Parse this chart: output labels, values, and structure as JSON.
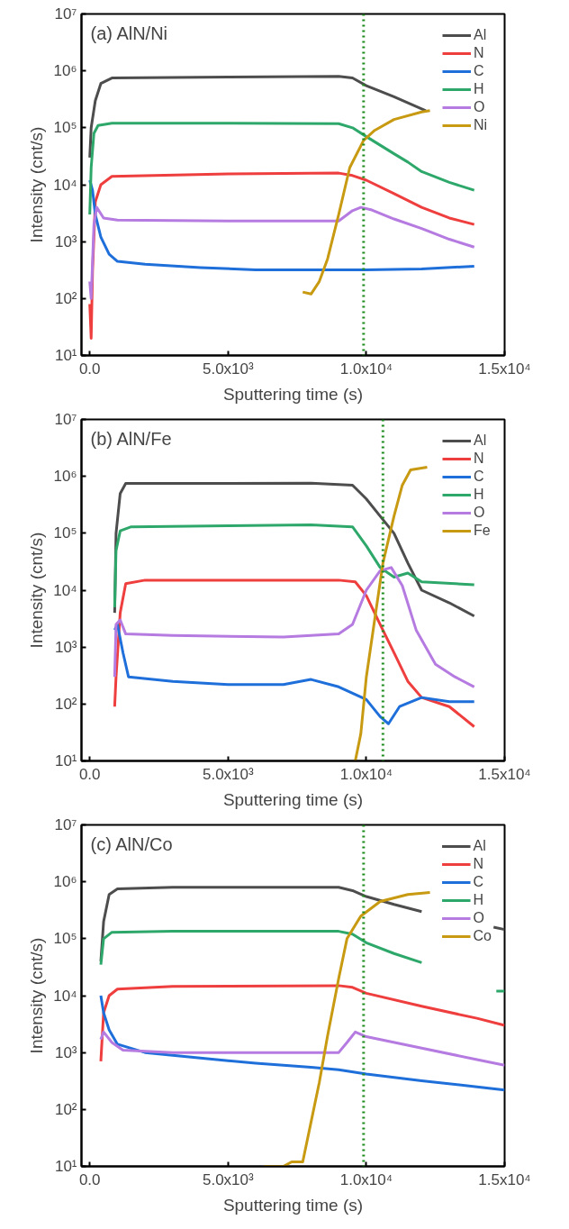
{
  "chart_data": [
    {
      "type": "line",
      "title": "(a) AlN/Ni",
      "xlabel": "Sputtering time (s)",
      "ylabel": "Intensity (cnt/s)",
      "log": "y",
      "grid": false,
      "legend": "top right",
      "marker": "none",
      "line_style": "solid",
      "xlim": [
        -300,
        15000
      ],
      "xticks": [
        {
          "value": 0,
          "label": "0.0"
        },
        {
          "value": 5000,
          "label": "5.0x10³"
        },
        {
          "value": 10000,
          "label": "1.0x10⁴"
        },
        {
          "value": 15000,
          "label": "1.5x10⁴"
        }
      ],
      "ylim": [
        10,
        10000000
      ],
      "yticks": [
        {
          "value": 10,
          "label": "10¹"
        },
        {
          "value": 100,
          "label": "10²"
        },
        {
          "value": 1000,
          "label": "10³"
        },
        {
          "value": 10000,
          "label": "10⁴"
        },
        {
          "value": 100000,
          "label": "10⁵"
        },
        {
          "value": 1000000,
          "label": "10⁶"
        },
        {
          "value": 10000000,
          "label": "10⁷"
        }
      ],
      "ref_lines": [
        {
          "axis": "x",
          "value": 9900,
          "color": "#1e8c1e",
          "line_style": "dotted"
        }
      ],
      "series": [
        {
          "name": "Al",
          "color": "#4d4d4d",
          "x": [
            0,
            50,
            200,
            400,
            800,
            5000,
            9000,
            9500,
            10000,
            11000,
            12150
          ],
          "values": [
            30000,
            100000,
            300000,
            600000,
            750000,
            780000,
            800000,
            750000,
            550000,
            350000,
            200000
          ]
        },
        {
          "name": "N",
          "color": "#ef3e3e",
          "x": [
            0,
            50,
            100,
            200,
            400,
            800,
            5000,
            9000,
            9500,
            10000,
            11000,
            12000,
            13000,
            13900
          ],
          "values": [
            80,
            20,
            300,
            5000,
            10000,
            14000,
            15500,
            16000,
            14500,
            12000,
            7000,
            4000,
            2600,
            2000
          ]
        },
        {
          "name": "C",
          "color": "#1f6fdb",
          "x": [
            0,
            100,
            200,
            400,
            700,
            1000,
            2000,
            4000,
            6000,
            8000,
            10000,
            12000,
            13900
          ],
          "values": [
            12000,
            8000,
            3000,
            1200,
            600,
            450,
            400,
            350,
            320,
            320,
            320,
            330,
            370
          ]
        },
        {
          "name": "H",
          "color": "#2ea86a",
          "x": [
            0,
            50,
            150,
            300,
            800,
            5000,
            9000,
            9500,
            10000,
            11000,
            11500,
            12000,
            13000,
            13900
          ],
          "values": [
            3000,
            20000,
            80000,
            110000,
            120000,
            120000,
            118000,
            100000,
            70000,
            35000,
            25000,
            17000,
            11000,
            8000
          ]
        },
        {
          "name": "O",
          "color": "#b57be0",
          "x": [
            0,
            50,
            150,
            250,
            500,
            1000,
            5000,
            9000,
            9500,
            9800,
            10200,
            11000,
            12000,
            13000,
            13900
          ],
          "values": [
            200,
            100,
            2000,
            4000,
            2600,
            2400,
            2300,
            2300,
            3500,
            4000,
            3600,
            2500,
            1700,
            1100,
            800
          ]
        },
        {
          "name": "Ni",
          "color": "#c89a12",
          "x": [
            7700,
            8000,
            8300,
            8600,
            9000,
            9400,
            9900,
            10300,
            11000,
            12000,
            12300
          ],
          "values": [
            130,
            120,
            200,
            500,
            3000,
            20000,
            60000,
            90000,
            140000,
            190000,
            200000
          ]
        }
      ]
    },
    {
      "type": "line",
      "title": "(b) AlN/Fe",
      "xlabel": "Sputtering time (s)",
      "ylabel": "Intensity (cnt/s)",
      "log": "y",
      "grid": false,
      "legend": "top right",
      "marker": "none",
      "line_style": "solid",
      "xlim": [
        -300,
        15000
      ],
      "xticks": [
        {
          "value": 0,
          "label": "0.0"
        },
        {
          "value": 5000,
          "label": "5.0x10³"
        },
        {
          "value": 10000,
          "label": "1.0x10⁴"
        },
        {
          "value": 15000,
          "label": "1.5x10⁴"
        }
      ],
      "ylim": [
        10,
        10000000
      ],
      "yticks": [
        {
          "value": 10,
          "label": "10¹"
        },
        {
          "value": 100,
          "label": "10²"
        },
        {
          "value": 1000,
          "label": "10³"
        },
        {
          "value": 10000,
          "label": "10⁴"
        },
        {
          "value": 100000,
          "label": "10⁵"
        },
        {
          "value": 1000000,
          "label": "10⁶"
        },
        {
          "value": 10000000,
          "label": "10⁷"
        }
      ],
      "ref_lines": [
        {
          "axis": "x",
          "value": 10600,
          "color": "#1e8c1e",
          "line_style": "dotted"
        }
      ],
      "series": [
        {
          "name": "Al",
          "color": "#4d4d4d",
          "x": [
            900,
            950,
            1100,
            1300,
            5000,
            8000,
            9500,
            10000,
            10500,
            11000,
            11500,
            12000,
            13000,
            13900
          ],
          "values": [
            4000,
            100000,
            500000,
            750000,
            750000,
            760000,
            700000,
            400000,
            200000,
            100000,
            30000,
            10000,
            6000,
            3500
          ]
        },
        {
          "name": "N",
          "color": "#ef3e3e",
          "x": [
            900,
            950,
            1100,
            1300,
            2000,
            9000,
            9600,
            10000,
            10500,
            11000,
            11500,
            12000,
            13000,
            13900
          ],
          "values": [
            90,
            300,
            4000,
            13000,
            15000,
            15000,
            14000,
            8000,
            2500,
            800,
            250,
            130,
            90,
            40
          ]
        },
        {
          "name": "C",
          "color": "#1f6fdb",
          "x": [
            900,
            1000,
            1200,
            1400,
            3000,
            5000,
            7000,
            8000,
            9000,
            10000,
            10500,
            10800,
            11200,
            12000,
            13000,
            13900
          ],
          "values": [
            2000,
            2500,
            800,
            300,
            250,
            220,
            220,
            270,
            200,
            120,
            60,
            45,
            90,
            130,
            110,
            110
          ]
        },
        {
          "name": "H",
          "color": "#2ea86a",
          "x": [
            900,
            950,
            1100,
            1500,
            5000,
            8000,
            9500,
            10000,
            10500,
            11000,
            11500,
            12000,
            13900
          ],
          "values": [
            5000,
            50000,
            110000,
            130000,
            135000,
            140000,
            130000,
            60000,
            25000,
            17000,
            20000,
            14000,
            12500
          ]
        },
        {
          "name": "O",
          "color": "#b57be0",
          "x": [
            900,
            950,
            1100,
            1300,
            3000,
            7000,
            9000,
            9500,
            10000,
            10500,
            10900,
            11300,
            11800,
            12500,
            13200,
            13900
          ],
          "values": [
            300,
            2500,
            3000,
            1700,
            1600,
            1500,
            1700,
            2500,
            10000,
            22000,
            25000,
            12000,
            2000,
            500,
            300,
            200
          ]
        },
        {
          "name": "Fe",
          "color": "#c89a12",
          "x": [
            9600,
            9800,
            10000,
            10300,
            10600,
            11000,
            11300,
            11600,
            12200
          ],
          "values": [
            10,
            30,
            300,
            3000,
            30000,
            200000,
            700000,
            1300000,
            1450000
          ]
        }
      ]
    },
    {
      "type": "line",
      "title": "(c) AlN/Co",
      "xlabel": "Sputtering time (s)",
      "ylabel": "Intensity (cnt/s)",
      "log": "y",
      "grid": false,
      "legend": "top right",
      "marker": "none",
      "line_style": "solid",
      "xlim": [
        -300,
        15000
      ],
      "xticks": [
        {
          "value": 0,
          "label": "0.0"
        },
        {
          "value": 5000,
          "label": "5.0x10³"
        },
        {
          "value": 10000,
          "label": "1.0x10⁴"
        },
        {
          "value": 15000,
          "label": "1.5x10⁴"
        }
      ],
      "ylim": [
        10,
        10000000
      ],
      "yticks": [
        {
          "value": 10,
          "label": "10¹"
        },
        {
          "value": 100,
          "label": "10²"
        },
        {
          "value": 1000,
          "label": "10³"
        },
        {
          "value": 10000,
          "label": "10⁴"
        },
        {
          "value": 100000,
          "label": "10⁵"
        },
        {
          "value": 1000000,
          "label": "10⁶"
        },
        {
          "value": 10000000,
          "label": "10⁷"
        }
      ],
      "ref_lines": [
        {
          "axis": "x",
          "value": 9900,
          "color": "#1e8c1e",
          "line_style": "dotted"
        }
      ],
      "series": [
        {
          "name": "Al",
          "color": "#4d4d4d",
          "x": [
            400,
            500,
            700,
            1000,
            3000,
            9000,
            9500,
            10000,
            11000,
            12000,
            12200,
            14600,
            15000
          ],
          "values": [
            40000,
            200000,
            600000,
            750000,
            800000,
            800000,
            700000,
            550000,
            400000,
            300000,
            null,
            160000,
            145000
          ]
        },
        {
          "name": "N",
          "color": "#ef3e3e",
          "x": [
            400,
            500,
            700,
            1000,
            3000,
            9000,
            9500,
            10000,
            12000,
            14000,
            15000
          ],
          "values": [
            700,
            5000,
            10000,
            13000,
            14500,
            15000,
            14000,
            11000,
            6500,
            4000,
            3000
          ]
        },
        {
          "name": "C",
          "color": "#1f6fdb",
          "x": [
            400,
            500,
            700,
            1000,
            2000,
            4000,
            6000,
            8000,
            9000,
            10000,
            12000,
            14000,
            15000
          ],
          "values": [
            10000,
            5000,
            2500,
            1400,
            1000,
            800,
            650,
            550,
            500,
            420,
            320,
            250,
            220
          ]
        },
        {
          "name": "H",
          "color": "#2ea86a",
          "x": [
            400,
            500,
            800,
            3000,
            9000,
            9500,
            10000,
            11000,
            12000,
            12200,
            14700,
            15000
          ],
          "values": [
            35000,
            100000,
            130000,
            135000,
            135000,
            120000,
            85000,
            55000,
            38000,
            null,
            12000,
            12000
          ]
        },
        {
          "name": "O",
          "color": "#b57be0",
          "x": [
            400,
            500,
            800,
            1200,
            3000,
            9000,
            9300,
            9600,
            10000,
            12000,
            14000,
            15000
          ],
          "values": [
            1700,
            2300,
            1500,
            1100,
            1000,
            1000,
            1500,
            2300,
            1900,
            1200,
            750,
            600
          ]
        },
        {
          "name": "Co",
          "color": "#c89a12",
          "x": [
            6300,
            7000,
            7300,
            7700,
            8000,
            8300,
            8600,
            9000,
            9300,
            9800,
            10500,
            11500,
            12300
          ],
          "values": [
            10,
            10,
            12,
            12,
            60,
            300,
            2000,
            20000,
            100000,
            250000,
            450000,
            600000,
            650000
          ]
        }
      ]
    }
  ]
}
